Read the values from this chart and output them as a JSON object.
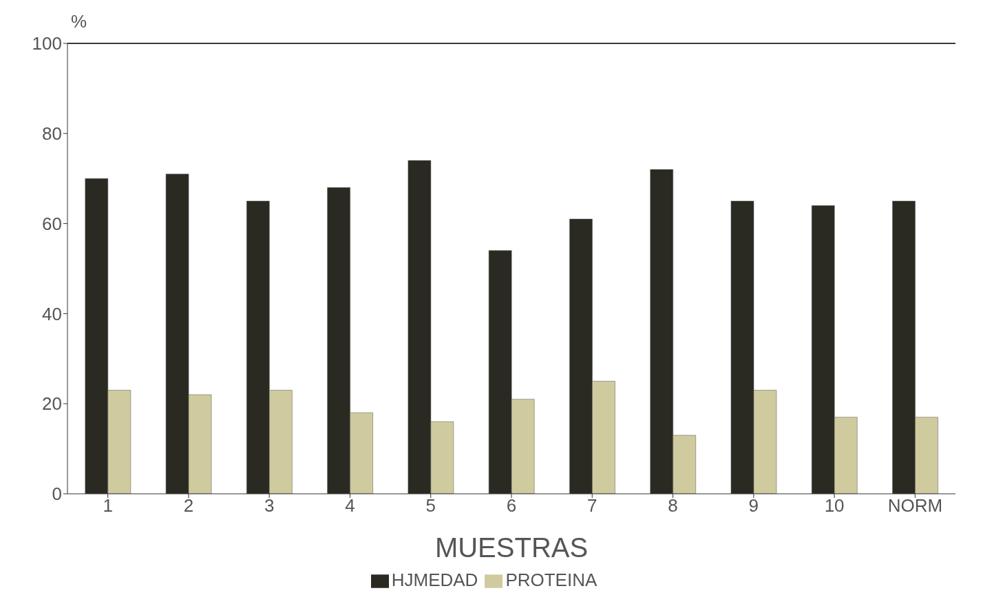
{
  "chart_data": {
    "type": "bar",
    "ylabel": "%",
    "xlabel": "MUESTRAS",
    "categories": [
      "1",
      "2",
      "3",
      "4",
      "5",
      "6",
      "7",
      "8",
      "9",
      "10",
      "NORM"
    ],
    "series": [
      {
        "name": "HJMEDAD",
        "color": "#2b2a22",
        "values": [
          70,
          71,
          65,
          68,
          74,
          54,
          61,
          72,
          65,
          64,
          65
        ]
      },
      {
        "name": "PROTEINA",
        "color": "#cfcb9e",
        "values": [
          23,
          22,
          23,
          18,
          16,
          21,
          25,
          13,
          23,
          17,
          17
        ]
      }
    ],
    "ylim": [
      0,
      100
    ],
    "yticks": [
      0,
      20,
      40,
      60,
      80,
      100
    ],
    "grid": false,
    "legend": "bottom",
    "ref_lines": [
      {
        "axis": "y",
        "value": 100,
        "color": "#3a3a30"
      }
    ]
  }
}
